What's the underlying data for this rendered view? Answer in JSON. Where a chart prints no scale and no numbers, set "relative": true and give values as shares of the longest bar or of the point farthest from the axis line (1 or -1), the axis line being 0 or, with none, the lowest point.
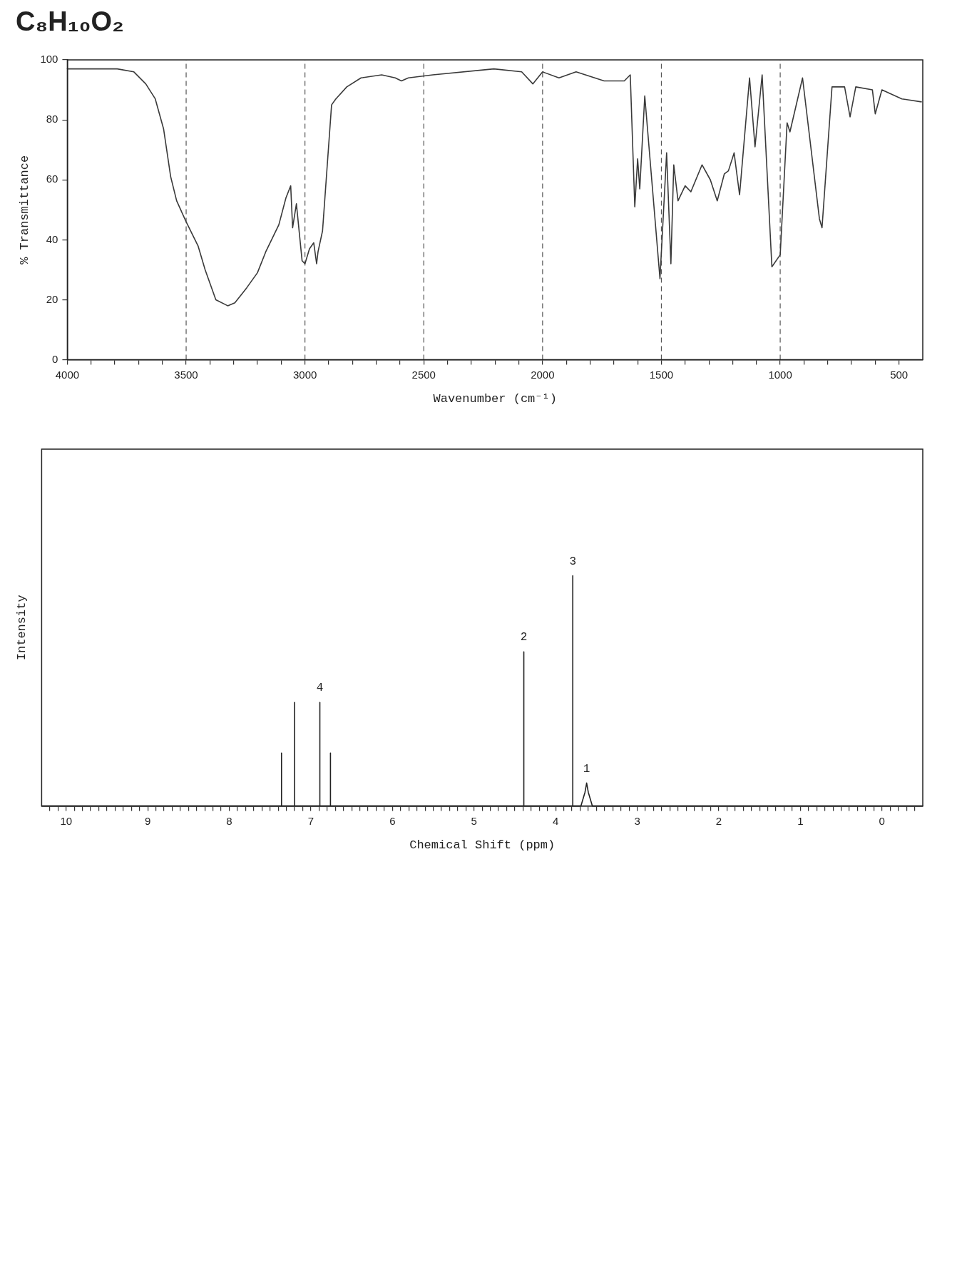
{
  "chart_data": [
    {
      "type": "line",
      "title": "C₈H₁₀O₂",
      "xlabel": "Wavenumber (cm⁻¹)",
      "ylabel": "% Transmittance",
      "color": "#3a3a3a",
      "x": [
        4000,
        3790,
        3720,
        3670,
        3630,
        3595,
        3565,
        3540,
        3500,
        3450,
        3420,
        3375,
        3325,
        3295,
        3245,
        3200,
        3165,
        3110,
        3080,
        3060,
        3052,
        3036,
        3012,
        3000,
        2981,
        2963,
        2951,
        2945,
        2926,
        2888,
        2870,
        2824,
        2764,
        2677,
        2620,
        2594,
        2565,
        2462,
        2205,
        2088,
        2041,
        2000,
        1931,
        1859,
        1741,
        1656,
        1631,
        1612,
        1600,
        1591,
        1570,
        1506,
        1478,
        1460,
        1448,
        1430,
        1400,
        1376,
        1329,
        1294,
        1265,
        1235,
        1218,
        1194,
        1171,
        1129,
        1106,
        1076,
        1035,
        1000,
        971,
        959,
        906,
        835,
        824,
        782,
        729,
        706,
        682,
        612,
        600,
        572,
        488,
        406
      ],
      "values": [
        97,
        97,
        96,
        92,
        87,
        77,
        61,
        53,
        46,
        38,
        30,
        20,
        18,
        19,
        24,
        29,
        36,
        45,
        54,
        58,
        44,
        52,
        33,
        32,
        37,
        39,
        32,
        36,
        43,
        85,
        87,
        91,
        94,
        95,
        94,
        93,
        94,
        95,
        97,
        96,
        92,
        96,
        94,
        96,
        93,
        93,
        95,
        51,
        67,
        57,
        88,
        27,
        69,
        32,
        65,
        53,
        58,
        56,
        65,
        60,
        53,
        62,
        63,
        69,
        55,
        94,
        71,
        95,
        31,
        35,
        79,
        76,
        94,
        47,
        44,
        91,
        91,
        81,
        91,
        90,
        82,
        90,
        87,
        86
      ],
      "xlim": [
        4000,
        400
      ],
      "xticks": [
        4000,
        {
          "value": 3900,
          "label": null
        },
        {
          "value": 3800,
          "label": null
        },
        {
          "value": 3700,
          "label": null
        },
        {
          "value": 3600,
          "label": null
        },
        3500,
        {
          "value": 3400,
          "label": null
        },
        {
          "value": 3300,
          "label": null
        },
        {
          "value": 3200,
          "label": null
        },
        {
          "value": 3100,
          "label": null
        },
        3000,
        {
          "value": 2900,
          "label": null
        },
        {
          "value": 2800,
          "label": null
        },
        {
          "value": 2700,
          "label": null
        },
        {
          "value": 2600,
          "label": null
        },
        2500,
        {
          "value": 2400,
          "label": null
        },
        {
          "value": 2300,
          "label": null
        },
        {
          "value": 2200,
          "label": null
        },
        {
          "value": 2100,
          "label": null
        },
        2000,
        {
          "value": 1900,
          "label": null
        },
        {
          "value": 1800,
          "label": null
        },
        {
          "value": 1700,
          "label": null
        },
        {
          "value": 1600,
          "label": null
        },
        1500,
        {
          "value": 1400,
          "label": null
        },
        {
          "value": 1300,
          "label": null
        },
        {
          "value": 1200,
          "label": null
        },
        {
          "value": 1100,
          "label": null
        },
        1000,
        {
          "value": 900,
          "label": null
        },
        {
          "value": 800,
          "label": null
        },
        {
          "value": 700,
          "label": null
        },
        {
          "value": 600,
          "label": null
        },
        500
      ],
      "ylim": [
        0,
        100
      ],
      "yticks": [
        0,
        20,
        40,
        60,
        80,
        100
      ],
      "ref_lines": [
        {
          "axis": "x",
          "value": 3500,
          "color": "#555555",
          "line_style": "dashed"
        },
        {
          "axis": "x",
          "value": 3000,
          "color": "#555555",
          "line_style": "dashed"
        },
        {
          "axis": "x",
          "value": 2500,
          "color": "#555555",
          "line_style": "dashed"
        },
        {
          "axis": "x",
          "value": 2000,
          "color": "#555555",
          "line_style": "dashed"
        },
        {
          "axis": "x",
          "value": 1500,
          "color": "#555555",
          "line_style": "dashed"
        },
        {
          "axis": "x",
          "value": 1000,
          "color": "#555555",
          "line_style": "dashed"
        }
      ]
    },
    {
      "type": "line",
      "xlabel": "Chemical Shift (ppm)",
      "ylabel": "Intensity",
      "color": "#222222",
      "relative": true,
      "tick_labels": "x",
      "x": [
        10.3,
        7.36,
        7.36,
        7.36,
        7.2,
        7.2,
        7.2,
        6.89,
        6.89,
        6.89,
        6.76,
        6.76,
        6.76,
        4.39,
        4.39,
        4.39,
        3.79,
        3.79,
        3.79,
        3.69,
        3.64,
        3.62,
        3.6,
        3.55,
        -0.5
      ],
      "values": [
        0,
        0,
        0.23,
        0,
        0,
        0.45,
        0,
        0,
        0.45,
        0,
        0,
        0.23,
        0,
        0,
        0.67,
        0,
        0,
        1,
        0,
        0,
        0.06,
        0.1,
        0.06,
        0,
        0
      ],
      "xlim": [
        10.3,
        -0.5
      ],
      "xticks": [
        10,
        {
          "value": 10.2,
          "label": null
        },
        {
          "value": 10.1,
          "label": null
        },
        {
          "value": 9.9,
          "label": null
        },
        {
          "value": 9.8,
          "label": null
        },
        {
          "value": 9.7,
          "label": null
        },
        {
          "value": 9.6,
          "label": null
        },
        {
          "value": 9.5,
          "label": null
        },
        {
          "value": 9.4,
          "label": null
        },
        {
          "value": 9.3,
          "label": null
        },
        {
          "value": 9.2,
          "label": null
        },
        {
          "value": 9.1,
          "label": null
        },
        9,
        {
          "value": 8.9,
          "label": null
        },
        {
          "value": 8.8,
          "label": null
        },
        {
          "value": 8.7,
          "label": null
        },
        {
          "value": 8.6,
          "label": null
        },
        {
          "value": 8.5,
          "label": null
        },
        {
          "value": 8.4,
          "label": null
        },
        {
          "value": 8.3,
          "label": null
        },
        {
          "value": 8.2,
          "label": null
        },
        {
          "value": 8.1,
          "label": null
        },
        8,
        {
          "value": 7.9,
          "label": null
        },
        {
          "value": 7.8,
          "label": null
        },
        {
          "value": 7.7,
          "label": null
        },
        {
          "value": 7.6,
          "label": null
        },
        {
          "value": 7.5,
          "label": null
        },
        {
          "value": 7.4,
          "label": null
        },
        {
          "value": 7.3,
          "label": null
        },
        {
          "value": 7.2,
          "label": null
        },
        {
          "value": 7.1,
          "label": null
        },
        7,
        {
          "value": 6.9,
          "label": null
        },
        {
          "value": 6.8,
          "label": null
        },
        {
          "value": 6.7,
          "label": null
        },
        {
          "value": 6.6,
          "label": null
        },
        {
          "value": 6.5,
          "label": null
        },
        {
          "value": 6.4,
          "label": null
        },
        {
          "value": 6.3,
          "label": null
        },
        {
          "value": 6.2,
          "label": null
        },
        {
          "value": 6.1,
          "label": null
        },
        6,
        {
          "value": 5.9,
          "label": null
        },
        {
          "value": 5.8,
          "label": null
        },
        {
          "value": 5.7,
          "label": null
        },
        {
          "value": 5.6,
          "label": null
        },
        {
          "value": 5.5,
          "label": null
        },
        {
          "value": 5.4,
          "label": null
        },
        {
          "value": 5.3,
          "label": null
        },
        {
          "value": 5.2,
          "label": null
        },
        {
          "value": 5.1,
          "label": null
        },
        5,
        {
          "value": 4.9,
          "label": null
        },
        {
          "value": 4.8,
          "label": null
        },
        {
          "value": 4.7,
          "label": null
        },
        {
          "value": 4.6,
          "label": null
        },
        {
          "value": 4.5,
          "label": null
        },
        {
          "value": 4.4,
          "label": null
        },
        {
          "value": 4.3,
          "label": null
        },
        {
          "value": 4.2,
          "label": null
        },
        {
          "value": 4.1,
          "label": null
        },
        4,
        {
          "value": 3.9,
          "label": null
        },
        {
          "value": 3.8,
          "label": null
        },
        {
          "value": 3.7,
          "label": null
        },
        {
          "value": 3.6,
          "label": null
        },
        {
          "value": 3.5,
          "label": null
        },
        {
          "value": 3.4,
          "label": null
        },
        {
          "value": 3.3,
          "label": null
        },
        {
          "value": 3.2,
          "label": null
        },
        {
          "value": 3.1,
          "label": null
        },
        3,
        {
          "value": 2.9,
          "label": null
        },
        {
          "value": 2.8,
          "label": null
        },
        {
          "value": 2.7,
          "label": null
        },
        {
          "value": 2.6,
          "label": null
        },
        {
          "value": 2.5,
          "label": null
        },
        {
          "value": 2.4,
          "label": null
        },
        {
          "value": 2.3,
          "label": null
        },
        {
          "value": 2.2,
          "label": null
        },
        {
          "value": 2.1,
          "label": null
        },
        2,
        {
          "value": 1.9,
          "label": null
        },
        {
          "value": 1.8,
          "label": null
        },
        {
          "value": 1.7,
          "label": null
        },
        {
          "value": 1.6,
          "label": null
        },
        {
          "value": 1.5,
          "label": null
        },
        {
          "value": 1.4,
          "label": null
        },
        {
          "value": 1.3,
          "label": null
        },
        {
          "value": 1.2,
          "label": null
        },
        {
          "value": 1.1,
          "label": null
        },
        1,
        {
          "value": 0.9,
          "label": null
        },
        {
          "value": 0.8,
          "label": null
        },
        {
          "value": 0.7,
          "label": null
        },
        {
          "value": 0.6,
          "label": null
        },
        {
          "value": 0.5,
          "label": null
        },
        {
          "value": 0.4,
          "label": null
        },
        {
          "value": 0.3,
          "label": null
        },
        {
          "value": 0.2,
          "label": null
        },
        {
          "value": 0.1,
          "label": null
        },
        0,
        {
          "value": -0.1,
          "label": null
        },
        {
          "value": -0.2,
          "label": null
        },
        {
          "value": -0.3,
          "label": null
        },
        {
          "value": -0.4,
          "label": null
        }
      ],
      "annotations": [
        {
          "text": "4",
          "x": 6.89,
          "y": 0.45
        },
        {
          "text": "2",
          "x": 4.39,
          "y": 0.67
        },
        {
          "text": "3",
          "x": 3.79,
          "y": 1
        },
        {
          "text": "1",
          "x": 3.62,
          "y": 0.1
        }
      ]
    }
  ]
}
